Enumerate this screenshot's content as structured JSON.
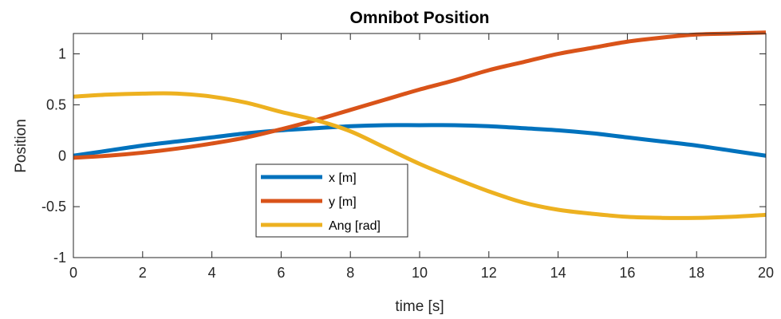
{
  "chart_data": {
    "type": "line",
    "title": "Omnibot Position",
    "xlabel": "time [s]",
    "ylabel": "Position",
    "xlim": [
      0,
      20
    ],
    "ylim": [
      -1,
      1.2
    ],
    "xticks": [
      0,
      2,
      4,
      6,
      8,
      10,
      12,
      14,
      16,
      18,
      20
    ],
    "yticks": [
      -1,
      -0.5,
      0,
      0.5,
      1
    ],
    "xtick_labels": [
      "0",
      "2",
      "4",
      "6",
      "8",
      "10",
      "12",
      "14",
      "16",
      "18",
      "20"
    ],
    "ytick_labels": [
      "-1",
      "-0.5",
      "0",
      "0.5",
      "1"
    ],
    "grid": false,
    "legend_position": "lower-left-center",
    "x": [
      0,
      1,
      2,
      3,
      4,
      5,
      6,
      7,
      8,
      9,
      10,
      11,
      12,
      13,
      14,
      15,
      16,
      17,
      18,
      19,
      20
    ],
    "series": [
      {
        "name": "x [m]",
        "color": "#0072BD",
        "values": [
          0.0,
          0.05,
          0.1,
          0.14,
          0.18,
          0.22,
          0.25,
          0.27,
          0.29,
          0.3,
          0.3,
          0.3,
          0.29,
          0.27,
          0.25,
          0.22,
          0.18,
          0.14,
          0.1,
          0.05,
          0.0
        ]
      },
      {
        "name": "y [m]",
        "color": "#D95319",
        "values": [
          -0.02,
          0.0,
          0.03,
          0.07,
          0.12,
          0.18,
          0.26,
          0.35,
          0.45,
          0.55,
          0.65,
          0.74,
          0.84,
          0.92,
          1.0,
          1.06,
          1.12,
          1.16,
          1.19,
          1.2,
          1.21
        ]
      },
      {
        "name": "Ang [rad]",
        "color": "#EDB120",
        "values": [
          0.58,
          0.6,
          0.61,
          0.61,
          0.58,
          0.52,
          0.43,
          0.35,
          0.24,
          0.08,
          -0.08,
          -0.22,
          -0.35,
          -0.46,
          -0.53,
          -0.57,
          -0.6,
          -0.61,
          -0.61,
          -0.6,
          -0.58
        ]
      }
    ]
  }
}
